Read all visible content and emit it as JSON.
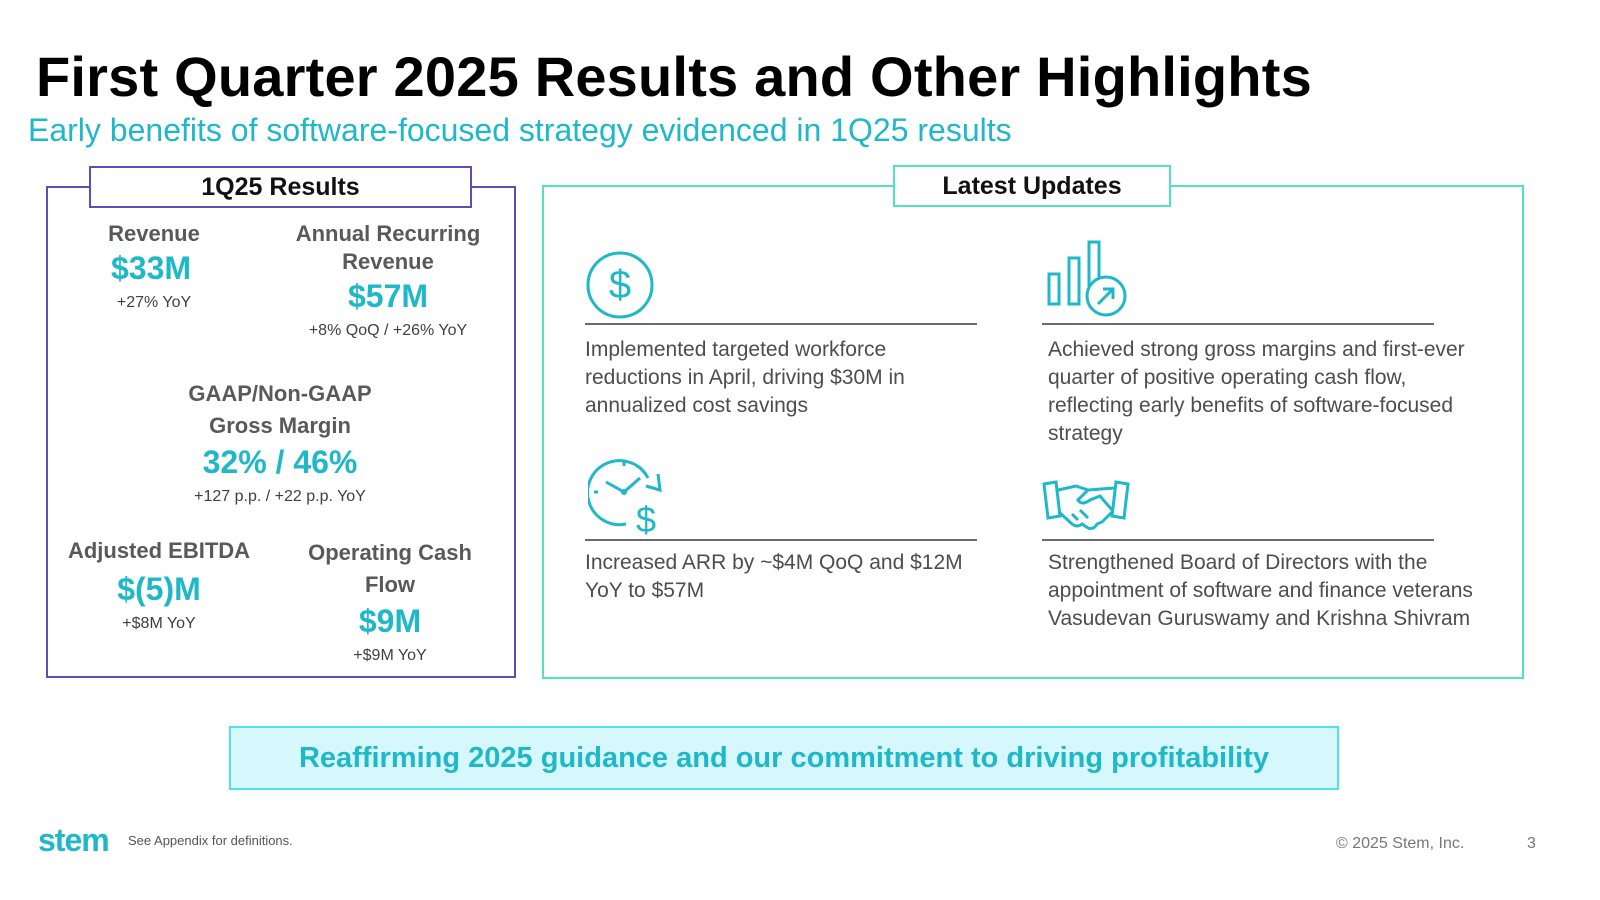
{
  "slide": {
    "title": "First Quarter 2025 Results and Other Highlights",
    "subtitle": "Early benefits of software-focused strategy evidenced in 1Q25 results"
  },
  "results": {
    "header": "1Q25 Results",
    "revenue": {
      "label": "Revenue",
      "value": "$33M",
      "change": "+27% YoY"
    },
    "arr": {
      "label_line1": "Annual Recurring",
      "label_line2": "Revenue",
      "value": "$57M",
      "change": "+8% QoQ / +26% YoY"
    },
    "gross_margin": {
      "label_line1": "GAAP/Non-GAAP",
      "label_line2": "Gross Margin",
      "value": "32% / 46%",
      "change": "+127 p.p. / +22 p.p. YoY"
    },
    "ebitda": {
      "label": "Adjusted EBITDA",
      "value": "$(5)M",
      "change": "+$8M YoY"
    },
    "ocf": {
      "label_line1": "Operating Cash",
      "label_line2": "Flow",
      "value": "$9M",
      "change": "+$9M YoY"
    }
  },
  "updates": {
    "header": "Latest Updates",
    "items": [
      {
        "icon": "dollar-circle-icon",
        "text": "Implemented targeted workforce reductions in April, driving $30M in annualized cost savings"
      },
      {
        "icon": "bar-chart-growth-icon",
        "text": "Achieved strong gross margins and first-ever quarter of positive operating cash flow, reflecting early benefits of software-focused strategy"
      },
      {
        "icon": "clock-dollar-icon",
        "text": "Increased ARR by ~$4M QoQ and $12M YoY to $57M"
      },
      {
        "icon": "handshake-icon",
        "text": "Strengthened Board of Directors with the appointment of software and finance veterans Vasudevan Guruswamy and Krishna Shivram"
      }
    ]
  },
  "banner": {
    "text": "Reaffirming 2025 guidance and our commitment to driving profitability"
  },
  "footer": {
    "logo": "stem",
    "footnote": "See Appendix for definitions.",
    "copyright": "© 2025 Stem, Inc.",
    "page_number": "3"
  },
  "colors": {
    "accent": "#1fb8c9",
    "results_border": "#5b4fb3",
    "updates_border": "#4ee3c8",
    "banner_bg": "#d6f7fb"
  }
}
